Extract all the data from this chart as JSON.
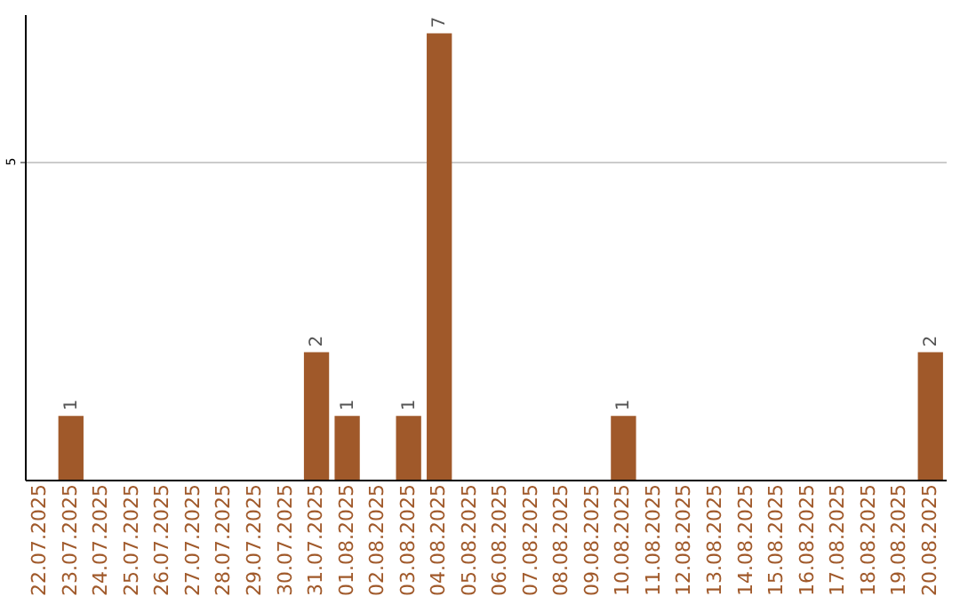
{
  "chart_data": {
    "type": "bar",
    "categories": [
      "22.07.2025",
      "23.07.2025",
      "24.07.2025",
      "25.07.2025",
      "26.07.2025",
      "27.07.2025",
      "28.07.2025",
      "29.07.2025",
      "30.07.2025",
      "31.07.2025",
      "01.08.2025",
      "02.08.2025",
      "03.08.2025",
      "04.08.2025",
      "05.08.2025",
      "06.08.2025",
      "07.08.2025",
      "08.08.2025",
      "09.08.2025",
      "10.08.2025",
      "11.08.2025",
      "12.08.2025",
      "13.08.2025",
      "14.08.2025",
      "15.08.2025",
      "16.08.2025",
      "17.08.2025",
      "18.08.2025",
      "19.08.2025",
      "20.08.2025"
    ],
    "values": [
      0,
      1,
      0,
      0,
      0,
      0,
      0,
      0,
      0,
      2,
      1,
      0,
      1,
      7,
      0,
      0,
      0,
      0,
      0,
      1,
      0,
      0,
      0,
      0,
      0,
      0,
      0,
      0,
      0,
      2
    ],
    "value_labels": [
      null,
      "1",
      null,
      null,
      null,
      null,
      null,
      null,
      null,
      "2",
      "1",
      null,
      "1",
      "7",
      null,
      null,
      null,
      null,
      null,
      "1",
      null,
      null,
      null,
      null,
      null,
      null,
      null,
      null,
      null,
      "2"
    ],
    "color": "#a0592a",
    "ylim": [
      0,
      7.3
    ],
    "yticks": [
      5
    ],
    "grid": "y"
  }
}
